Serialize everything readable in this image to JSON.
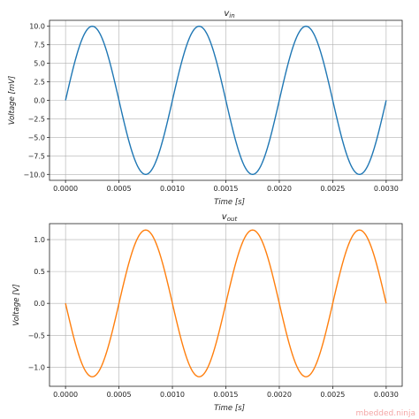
{
  "watermark": "mbedded.ninja",
  "chart_data": [
    {
      "type": "line",
      "title_main": "v",
      "title_sub": "in",
      "xlabel": "Time [s]",
      "ylabel": "Voltage [mV]",
      "xlim": [
        -0.00015,
        0.00315
      ],
      "ylim": [
        -10.8,
        10.8
      ],
      "xticks": [
        0,
        0.0005,
        0.001,
        0.0015,
        0.002,
        0.0025,
        0.003
      ],
      "xtick_labels": [
        "0.0000",
        "0.0005",
        "0.0010",
        "0.0015",
        "0.0020",
        "0.0025",
        "0.0030"
      ],
      "yticks": [
        -10,
        -7.5,
        -5,
        -2.5,
        0,
        2.5,
        5,
        7.5,
        10
      ],
      "ytick_labels": [
        "−10.0",
        "−7.5",
        "−5.0",
        "−2.5",
        "0.0",
        "2.5",
        "5.0",
        "7.5",
        "10.0"
      ],
      "grid": true,
      "series": [
        {
          "color": "#1f77b4",
          "amplitude": 10,
          "frequency": 1000,
          "phase": 0,
          "x_range": [
            0,
            0.003
          ]
        }
      ]
    },
    {
      "type": "line",
      "title_main": "v",
      "title_sub": "out",
      "xlabel": "Time [s]",
      "ylabel": "Voltage [V]",
      "xlim": [
        -0.00015,
        0.00315
      ],
      "ylim": [
        -1.3,
        1.25
      ],
      "xticks": [
        0,
        0.0005,
        0.001,
        0.0015,
        0.002,
        0.0025,
        0.003
      ],
      "xtick_labels": [
        "0.0000",
        "0.0005",
        "0.0010",
        "0.0015",
        "0.0020",
        "0.0025",
        "0.0030"
      ],
      "yticks": [
        -1,
        -0.5,
        0,
        0.5,
        1
      ],
      "ytick_labels": [
        "−1.0",
        "−0.5",
        "0.0",
        "0.5",
        "1.0"
      ],
      "grid": true,
      "series": [
        {
          "color": "#ff7f0e",
          "amplitude": 1.15,
          "frequency": 1000,
          "phase": 3.14159,
          "x_range": [
            0,
            0.003
          ]
        }
      ]
    }
  ]
}
